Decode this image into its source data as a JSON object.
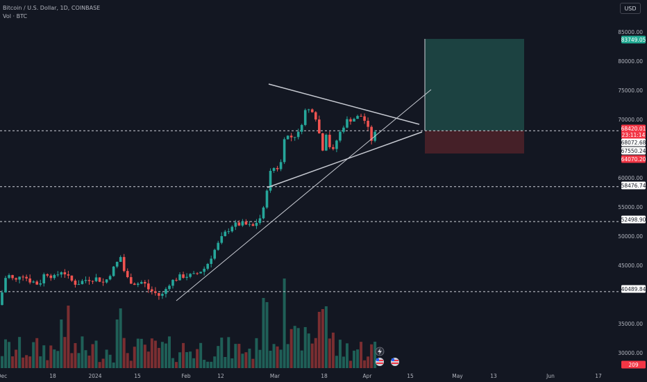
{
  "legend": {
    "symbol_line": "Bitcoin / U.S. Dollar, 1D, COINBASE",
    "volume_line": "Vol · BTC"
  },
  "currency_button": "USD",
  "price_axis": {
    "ticks": [
      "85000.00",
      "80000.00",
      "75000.00",
      "70000.00",
      "60000.00",
      "55000.00",
      "50000.00",
      "45000.00",
      "35000.00",
      "30000.00"
    ]
  },
  "price_tags": [
    {
      "text": "83749.05",
      "color": "#22ab94",
      "text_color": "#ffffff"
    },
    {
      "text": "68420.01",
      "color": "#f23645",
      "text_color": "#ffffff"
    },
    {
      "text": "23:11:14",
      "color": "#f23645",
      "text_color": "#ffffff"
    },
    {
      "text": "68072.68",
      "color": "#ffffff",
      "text_color": "#131722"
    },
    {
      "text": "67550.24",
      "color": "#ffffff",
      "text_color": "#131722"
    },
    {
      "text": "64070.20",
      "color": "#f23645",
      "text_color": "#ffffff"
    },
    {
      "text": "58476.74",
      "color": "#ffffff",
      "text_color": "#131722"
    },
    {
      "text": "52498.90",
      "color": "#ffffff",
      "text_color": "#131722"
    },
    {
      "text": "40489.84",
      "color": "#ffffff",
      "text_color": "#131722"
    },
    {
      "text": "209",
      "color": "#f23645",
      "text_color": "#ffffff"
    }
  ],
  "time_axis": {
    "labels": [
      "Dec",
      "18",
      "2024",
      "15",
      "Feb",
      "12",
      "Mar",
      "18",
      "Apr",
      "15",
      "May",
      "13",
      "Jun",
      "17"
    ]
  },
  "horizontal_levels": [
    "68072.68",
    "58476.74",
    "52498.90",
    "40489.84"
  ],
  "colors": {
    "background": "#131722",
    "up": "#26a69a",
    "down": "#ef5350",
    "vol_up": "#1f5f57",
    "vol_down": "#7a2e31",
    "target_zone": "#1e4a46",
    "stop_zone": "#4b2129",
    "drawing": "#c8cbd3"
  },
  "icons": [
    "lightning-icon",
    "flag-icon",
    "flag-icon"
  ]
}
